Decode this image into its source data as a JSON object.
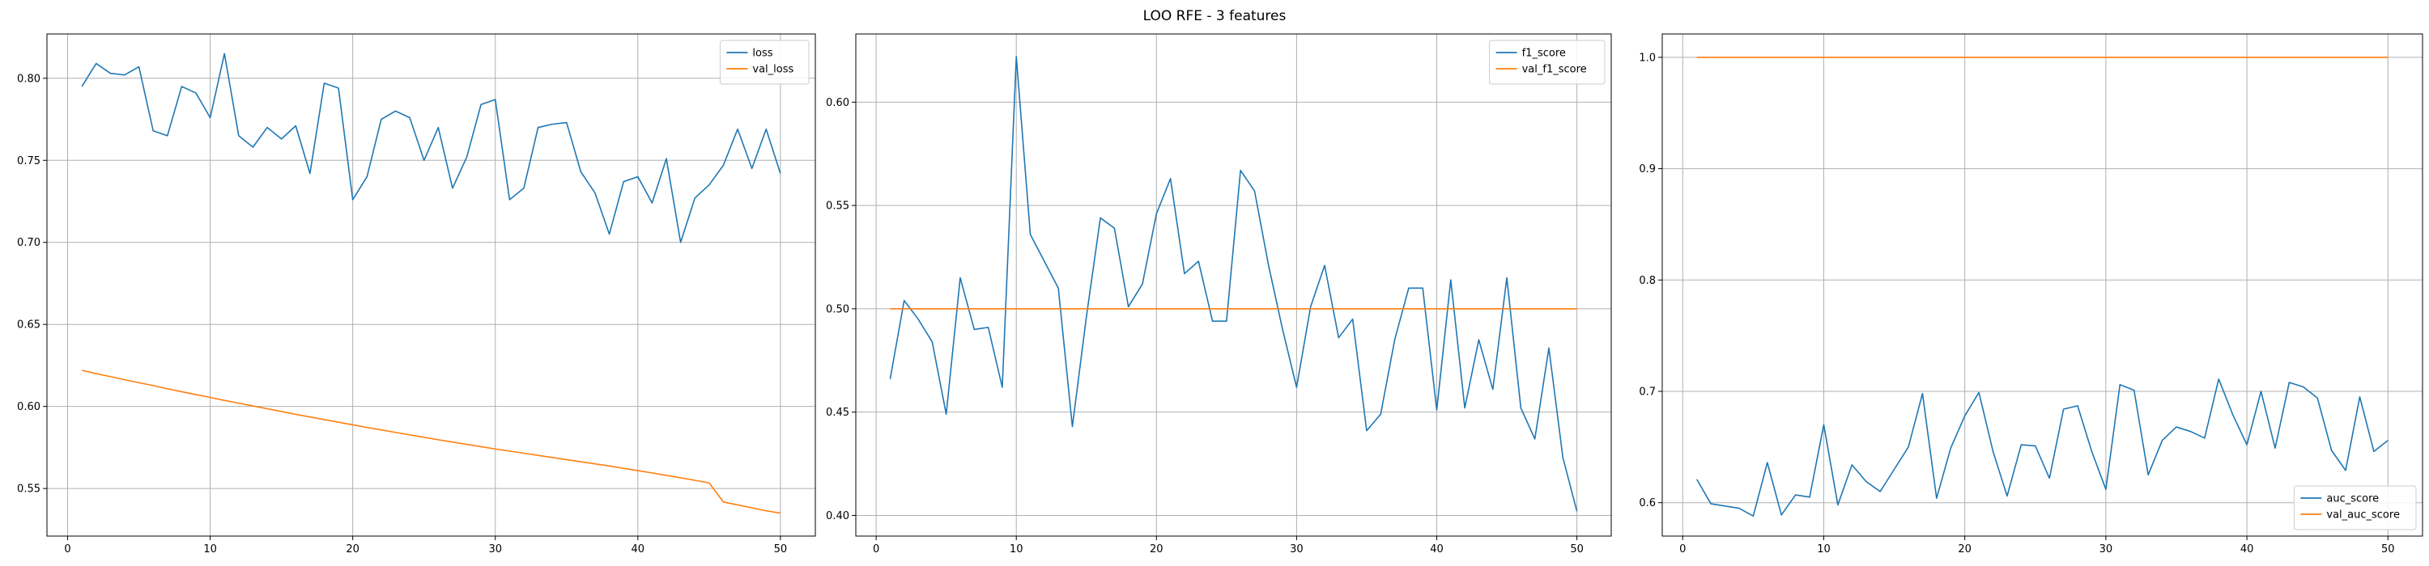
{
  "figure": {
    "title": "LOO RFE - 3 features"
  },
  "colors": {
    "train": "#1f77b4",
    "val": "#ff7f0e",
    "grid": "#b0b0b0",
    "axis": "#000000"
  },
  "chart_data": [
    {
      "type": "line",
      "title": "",
      "xlabel": "",
      "ylabel": "",
      "xlim": [
        -1.45,
        52.45
      ],
      "ylim": [
        0.521,
        0.827
      ],
      "xticks": [
        0,
        10,
        20,
        30,
        40,
        50
      ],
      "yticks": [
        0.55,
        0.6,
        0.65,
        0.7,
        0.75,
        0.8
      ],
      "ytick_decimals": 2,
      "grid": true,
      "legend": "top-right",
      "x": [
        1,
        2,
        3,
        4,
        5,
        6,
        7,
        8,
        9,
        10,
        11,
        12,
        13,
        14,
        15,
        16,
        17,
        18,
        19,
        20,
        21,
        22,
        23,
        24,
        25,
        26,
        27,
        28,
        29,
        30,
        31,
        32,
        33,
        34,
        35,
        36,
        37,
        38,
        39,
        40,
        41,
        42,
        43,
        44,
        45,
        46,
        47,
        48,
        49,
        50
      ],
      "series": [
        {
          "name": "loss",
          "color": "#1f77b4",
          "values": [
            0.795,
            0.809,
            0.803,
            0.802,
            0.807,
            0.768,
            0.765,
            0.795,
            0.791,
            0.776,
            0.815,
            0.765,
            0.758,
            0.77,
            0.763,
            0.771,
            0.742,
            0.797,
            0.794,
            0.726,
            0.74,
            0.775,
            0.78,
            0.776,
            0.75,
            0.77,
            0.733,
            0.752,
            0.784,
            0.787,
            0.726,
            0.733,
            0.77,
            0.772,
            0.773,
            0.743,
            0.73,
            0.705,
            0.737,
            0.74,
            0.724,
            0.751,
            0.7,
            0.727,
            0.735,
            0.747,
            0.769,
            0.745,
            0.769,
            0.742
          ]
        },
        {
          "name": "val_loss",
          "color": "#ff7f0e",
          "values": [
            0.622,
            0.62,
            0.6182,
            0.6163,
            0.6145,
            0.6127,
            0.6108,
            0.609,
            0.6072,
            0.6055,
            0.6037,
            0.602,
            0.6003,
            0.5986,
            0.5969,
            0.5952,
            0.5936,
            0.592,
            0.5904,
            0.5888,
            0.5872,
            0.5857,
            0.5842,
            0.5827,
            0.5812,
            0.5797,
            0.5783,
            0.5769,
            0.5755,
            0.5741,
            0.5728,
            0.5715,
            0.5702,
            0.5689,
            0.5676,
            0.5663,
            0.565,
            0.5637,
            0.5623,
            0.5609,
            0.5595,
            0.558,
            0.5565,
            0.555,
            0.5534,
            0.5418,
            0.54,
            0.5382,
            0.5364,
            0.535
          ]
        }
      ]
    },
    {
      "type": "line",
      "title": "",
      "xlabel": "",
      "ylabel": "",
      "xlim": [
        -1.45,
        52.45
      ],
      "ylim": [
        0.39,
        0.633
      ],
      "xticks": [
        0,
        10,
        20,
        30,
        40,
        50
      ],
      "yticks": [
        0.4,
        0.45,
        0.5,
        0.55,
        0.6
      ],
      "ytick_decimals": 2,
      "grid": true,
      "legend": "top-right",
      "x": [
        1,
        2,
        3,
        4,
        5,
        6,
        7,
        8,
        9,
        10,
        11,
        12,
        13,
        14,
        15,
        16,
        17,
        18,
        19,
        20,
        21,
        22,
        23,
        24,
        25,
        26,
        27,
        28,
        29,
        30,
        31,
        32,
        33,
        34,
        35,
        36,
        37,
        38,
        39,
        40,
        41,
        42,
        43,
        44,
        45,
        46,
        47,
        48,
        49,
        50
      ],
      "series": [
        {
          "name": "f1_score",
          "color": "#1f77b4",
          "values": [
            0.466,
            0.504,
            0.495,
            0.484,
            0.449,
            0.515,
            0.49,
            0.491,
            0.462,
            0.622,
            0.536,
            0.523,
            0.51,
            0.443,
            0.496,
            0.544,
            0.539,
            0.501,
            0.512,
            0.546,
            0.563,
            0.517,
            0.523,
            0.494,
            0.494,
            0.567,
            0.557,
            0.521,
            0.49,
            0.462,
            0.501,
            0.521,
            0.486,
            0.495,
            0.441,
            0.449,
            0.485,
            0.51,
            0.51,
            0.451,
            0.514,
            0.452,
            0.485,
            0.461,
            0.515,
            0.452,
            0.437,
            0.481,
            0.428,
            0.402
          ]
        },
        {
          "name": "val_f1_score",
          "color": "#ff7f0e",
          "values": [
            0.5,
            0.5,
            0.5,
            0.5,
            0.5,
            0.5,
            0.5,
            0.5,
            0.5,
            0.5,
            0.5,
            0.5,
            0.5,
            0.5,
            0.5,
            0.5,
            0.5,
            0.5,
            0.5,
            0.5,
            0.5,
            0.5,
            0.5,
            0.5,
            0.5,
            0.5,
            0.5,
            0.5,
            0.5,
            0.5,
            0.5,
            0.5,
            0.5,
            0.5,
            0.5,
            0.5,
            0.5,
            0.5,
            0.5,
            0.5,
            0.5,
            0.5,
            0.5,
            0.5,
            0.5,
            0.5,
            0.5,
            0.5,
            0.5,
            0.5
          ]
        }
      ]
    },
    {
      "type": "line",
      "title": "",
      "xlabel": "",
      "ylabel": "",
      "xlim": [
        -1.45,
        52.45
      ],
      "ylim": [
        0.57,
        1.021
      ],
      "xticks": [
        0,
        10,
        20,
        30,
        40,
        50
      ],
      "yticks": [
        0.6,
        0.7,
        0.8,
        0.9,
        1.0
      ],
      "ytick_decimals": 1,
      "grid": true,
      "legend": "bottom-right",
      "x": [
        1,
        2,
        3,
        4,
        5,
        6,
        7,
        8,
        9,
        10,
        11,
        12,
        13,
        14,
        15,
        16,
        17,
        18,
        19,
        20,
        21,
        22,
        23,
        24,
        25,
        26,
        27,
        28,
        29,
        30,
        31,
        32,
        33,
        34,
        35,
        36,
        37,
        38,
        39,
        40,
        41,
        42,
        43,
        44,
        45,
        46,
        47,
        48,
        49,
        50
      ],
      "series": [
        {
          "name": "auc_score",
          "color": "#1f77b4",
          "values": [
            0.621,
            0.599,
            0.597,
            0.595,
            0.588,
            0.636,
            0.589,
            0.607,
            0.605,
            0.67,
            0.598,
            0.634,
            0.619,
            0.61,
            0.63,
            0.65,
            0.698,
            0.604,
            0.649,
            0.678,
            0.699,
            0.646,
            0.606,
            0.652,
            0.651,
            0.622,
            0.684,
            0.687,
            0.646,
            0.612,
            0.706,
            0.701,
            0.625,
            0.656,
            0.668,
            0.664,
            0.658,
            0.711,
            0.679,
            0.652,
            0.7,
            0.649,
            0.708,
            0.704,
            0.694,
            0.647,
            0.629,
            0.695,
            0.646,
            0.656
          ]
        },
        {
          "name": "val_auc_score",
          "color": "#ff7f0e",
          "values": [
            1.0,
            1.0,
            1.0,
            1.0,
            1.0,
            1.0,
            1.0,
            1.0,
            1.0,
            1.0,
            1.0,
            1.0,
            1.0,
            1.0,
            1.0,
            1.0,
            1.0,
            1.0,
            1.0,
            1.0,
            1.0,
            1.0,
            1.0,
            1.0,
            1.0,
            1.0,
            1.0,
            1.0,
            1.0,
            1.0,
            1.0,
            1.0,
            1.0,
            1.0,
            1.0,
            1.0,
            1.0,
            1.0,
            1.0,
            1.0,
            1.0,
            1.0,
            1.0,
            1.0,
            1.0,
            1.0,
            1.0,
            1.0,
            1.0,
            1.0
          ]
        }
      ]
    }
  ]
}
